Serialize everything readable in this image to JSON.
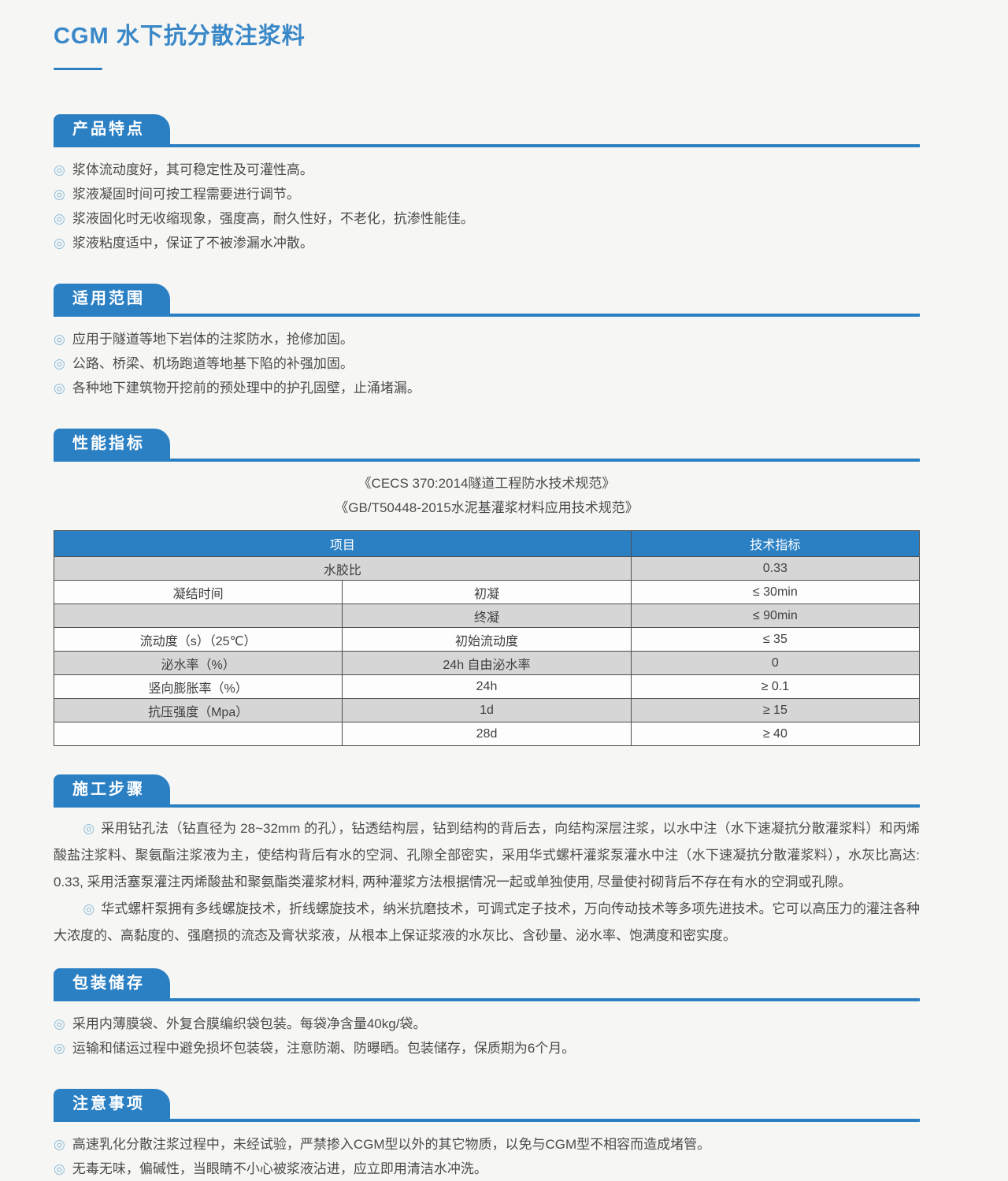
{
  "page": {
    "title": "CGM 水下抗分散注浆料"
  },
  "icons": {
    "bullet": "◎"
  },
  "colors": {
    "accent": "#2b80c4",
    "title_blue": "#3a88c8",
    "table_header_blue": "#2a81c5",
    "row_gray": "#d6d6d6",
    "bullet_blue": "#8cbcd9",
    "text": "#4b4b4b"
  },
  "sections": {
    "features": {
      "heading": "产品特点",
      "items": [
        "浆体流动度好，其可稳定性及可灌性高。",
        "浆液凝固时间可按工程需要进行调节。",
        "浆液固化时无收缩现象，强度高，耐久性好，不老化，抗渗性能佳。",
        "浆液粘度适中，保证了不被渗漏水冲散。"
      ]
    },
    "scope": {
      "heading": "适用范围",
      "items": [
        "应用于隧道等地下岩体的注浆防水，抢修加固。",
        "公路、桥梁、机场跑道等地基下陷的补强加固。",
        "各种地下建筑物开挖前的预处理中的护孔固壁，止涌堵漏。"
      ]
    },
    "performance": {
      "heading": "性能指标",
      "standards": [
        "《CECS 370:2014隧道工程防水技术规范》",
        "《GB/T50448-2015水泥基灌浆材料应用技术规范》"
      ],
      "table": {
        "col_item": "项目",
        "col_value": "技术指标",
        "rows": [
          {
            "a": "水胶比",
            "v": "0.33"
          },
          {
            "a": "凝结时间",
            "b": "初凝",
            "v": "≤ 30min"
          },
          {
            "a": "",
            "b": "终凝",
            "v": "≤ 90min"
          },
          {
            "a": "流动度（s）（25℃）",
            "b": "初始流动度",
            "v": "≤ 35"
          },
          {
            "a": "泌水率（%）",
            "b": "24h 自由泌水率",
            "v": "0"
          },
          {
            "a": "竖向膨胀率（%）",
            "b": "24h",
            "v": "≥ 0.1"
          },
          {
            "a": "抗压强度（Mpa）",
            "b": "1d",
            "v": "≥ 15"
          },
          {
            "a": "",
            "b": "28d",
            "v": "≥ 40"
          }
        ]
      }
    },
    "construction": {
      "heading": "施工步骤",
      "paragraphs": [
        "采用钻孔法（钻直径为 28~32mm 的孔），钻透结构层，钻到结构的背后去，向结构深层注浆，以水中注（水下速凝抗分散灌浆料）和丙烯酸盐注浆料、聚氨酯注浆液为主，使结构背后有水的空洞、孔隙全部密实，采用华式螺杆灌浆泵灌水中注（水下速凝抗分散灌浆料），水灰比高达: 0.33, 采用活塞泵灌注丙烯酸盐和聚氨酯类灌浆材料, 两种灌浆方法根据情况一起或单独使用, 尽量使衬砌背后不存在有水的空洞或孔隙。",
        "华式螺杆泵拥有多线螺旋技术，折线螺旋技术，纳米抗磨技术，可调式定子技术，万向传动技术等多项先进技术。它可以高压力的灌注各种大浓度的、高黏度的、强磨损的流态及膏状浆液，从根本上保证浆液的水灰比、含砂量、泌水率、饱满度和密实度。"
      ]
    },
    "packaging": {
      "heading": "包装储存",
      "items": [
        "采用内薄膜袋、外复合膜编织袋包装。每袋净含量40kg/袋。",
        "运输和储运过程中避免损坏包装袋，注意防潮、防曝晒。包装储存，保质期为6个月。"
      ]
    },
    "precautions": {
      "heading": "注意事项",
      "items": [
        "高速乳化分散注浆过程中，未经试验，严禁掺入CGM型以外的其它物质，以免与CGM型不相容而造成堵管。",
        "无毒无味，偏碱性，当眼睛不小心被浆液沾进，应立即用清洁水冲洗。"
      ]
    }
  }
}
